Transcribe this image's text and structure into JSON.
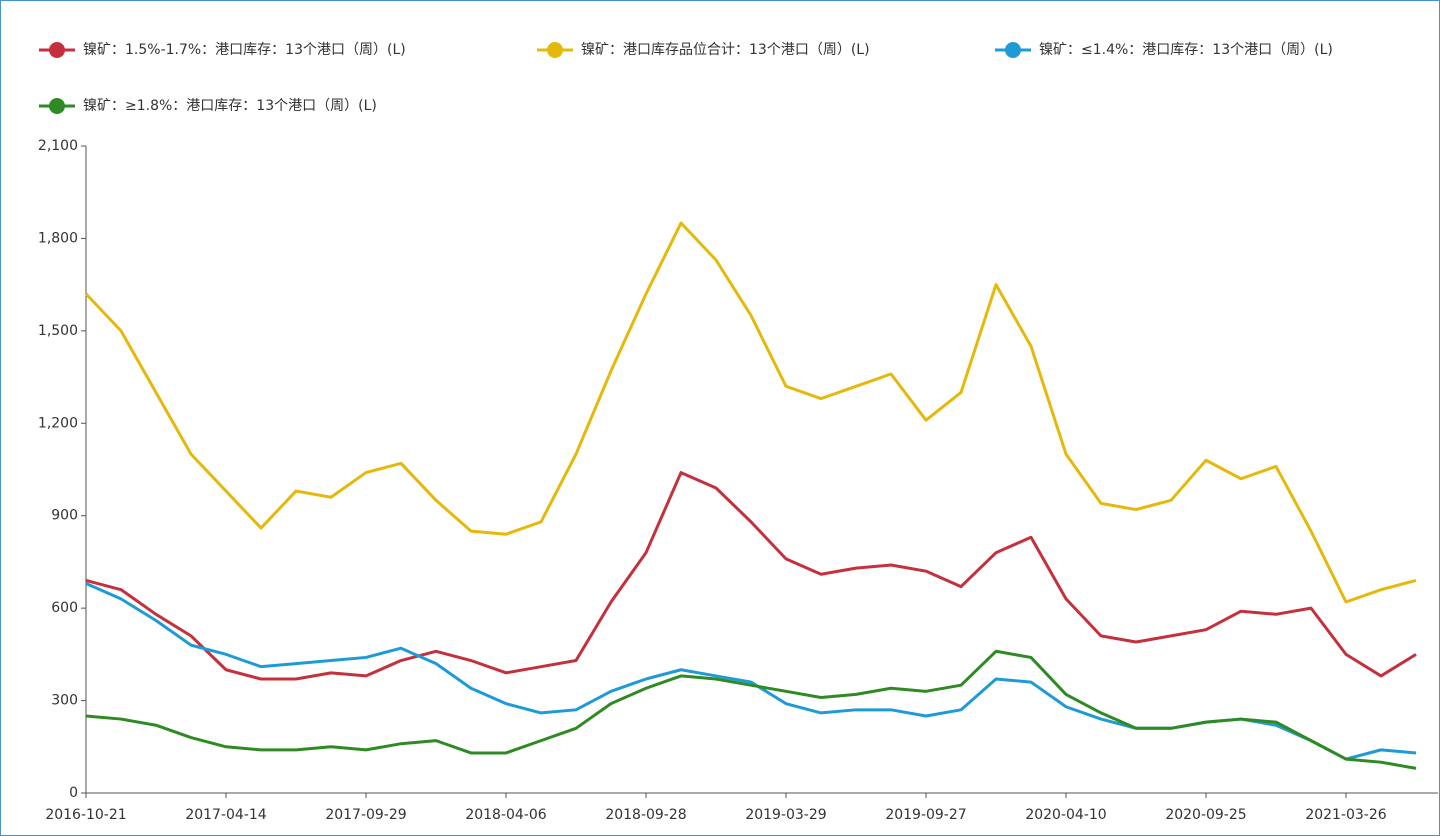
{
  "chart_data": {
    "type": "line",
    "categories": [
      "2016-10-21",
      null,
      null,
      null,
      "2017-04-14",
      null,
      null,
      null,
      "2017-09-29",
      null,
      null,
      null,
      "2018-04-06",
      null,
      null,
      null,
      "2018-09-28",
      null,
      null,
      null,
      "2019-03-29",
      null,
      null,
      null,
      "2019-09-27",
      null,
      null,
      null,
      "2020-04-10",
      null,
      null,
      null,
      "2020-09-25",
      null,
      null,
      null,
      "2021-03-26",
      null,
      null
    ],
    "series": [
      {
        "name": "镍矿：1.5%-1.7%：港口库存：13个港口（周）(L)",
        "color": "#c4303b",
        "values": [
          690,
          660,
          580,
          510,
          400,
          370,
          370,
          390,
          380,
          430,
          460,
          430,
          390,
          410,
          430,
          620,
          780,
          1040,
          990,
          880,
          760,
          710,
          730,
          740,
          720,
          670,
          780,
          830,
          630,
          510,
          490,
          510,
          530,
          590,
          580,
          600,
          450,
          380,
          450
        ]
      },
      {
        "name": "镍矿：港口库存品位合计：13个港口（周）(L)",
        "color": "#e5b80b",
        "values": [
          1620,
          1500,
          1300,
          1100,
          980,
          860,
          980,
          960,
          1040,
          1070,
          950,
          850,
          840,
          880,
          1100,
          1370,
          1620,
          1850,
          1730,
          1550,
          1320,
          1280,
          1320,
          1360,
          1210,
          1300,
          1650,
          1450,
          1100,
          940,
          920,
          950,
          1080,
          1020,
          1060,
          850,
          620,
          660,
          690
        ]
      },
      {
        "name": "镍矿：≤1.4%：港口库存：13个港口（周）(L)",
        "color": "#1e9bd7",
        "values": [
          680,
          630,
          560,
          480,
          450,
          410,
          420,
          430,
          440,
          470,
          420,
          340,
          290,
          260,
          270,
          330,
          370,
          400,
          380,
          360,
          290,
          260,
          270,
          270,
          250,
          270,
          370,
          360,
          280,
          240,
          210,
          210,
          230,
          240,
          220,
          170,
          110,
          140,
          130
        ]
      },
      {
        "name": "镍矿：≥1.8%：港口库存：13个港口（周）(L)",
        "color": "#2f8a24",
        "values": [
          250,
          240,
          220,
          180,
          150,
          140,
          140,
          150,
          140,
          160,
          170,
          130,
          130,
          170,
          210,
          290,
          340,
          380,
          370,
          350,
          330,
          310,
          320,
          340,
          330,
          350,
          460,
          440,
          320,
          260,
          210,
          210,
          230,
          240,
          230,
          170,
          110,
          100,
          80
        ]
      }
    ],
    "ylim": [
      0,
      2100
    ],
    "yticks": [
      0,
      300,
      600,
      900,
      {
        "value": 1200,
        "label": "1,200"
      },
      {
        "value": 1500,
        "label": "1,500"
      },
      {
        "value": 1800,
        "label": "1,800"
      },
      {
        "value": 2100,
        "label": "2,100"
      }
    ]
  }
}
